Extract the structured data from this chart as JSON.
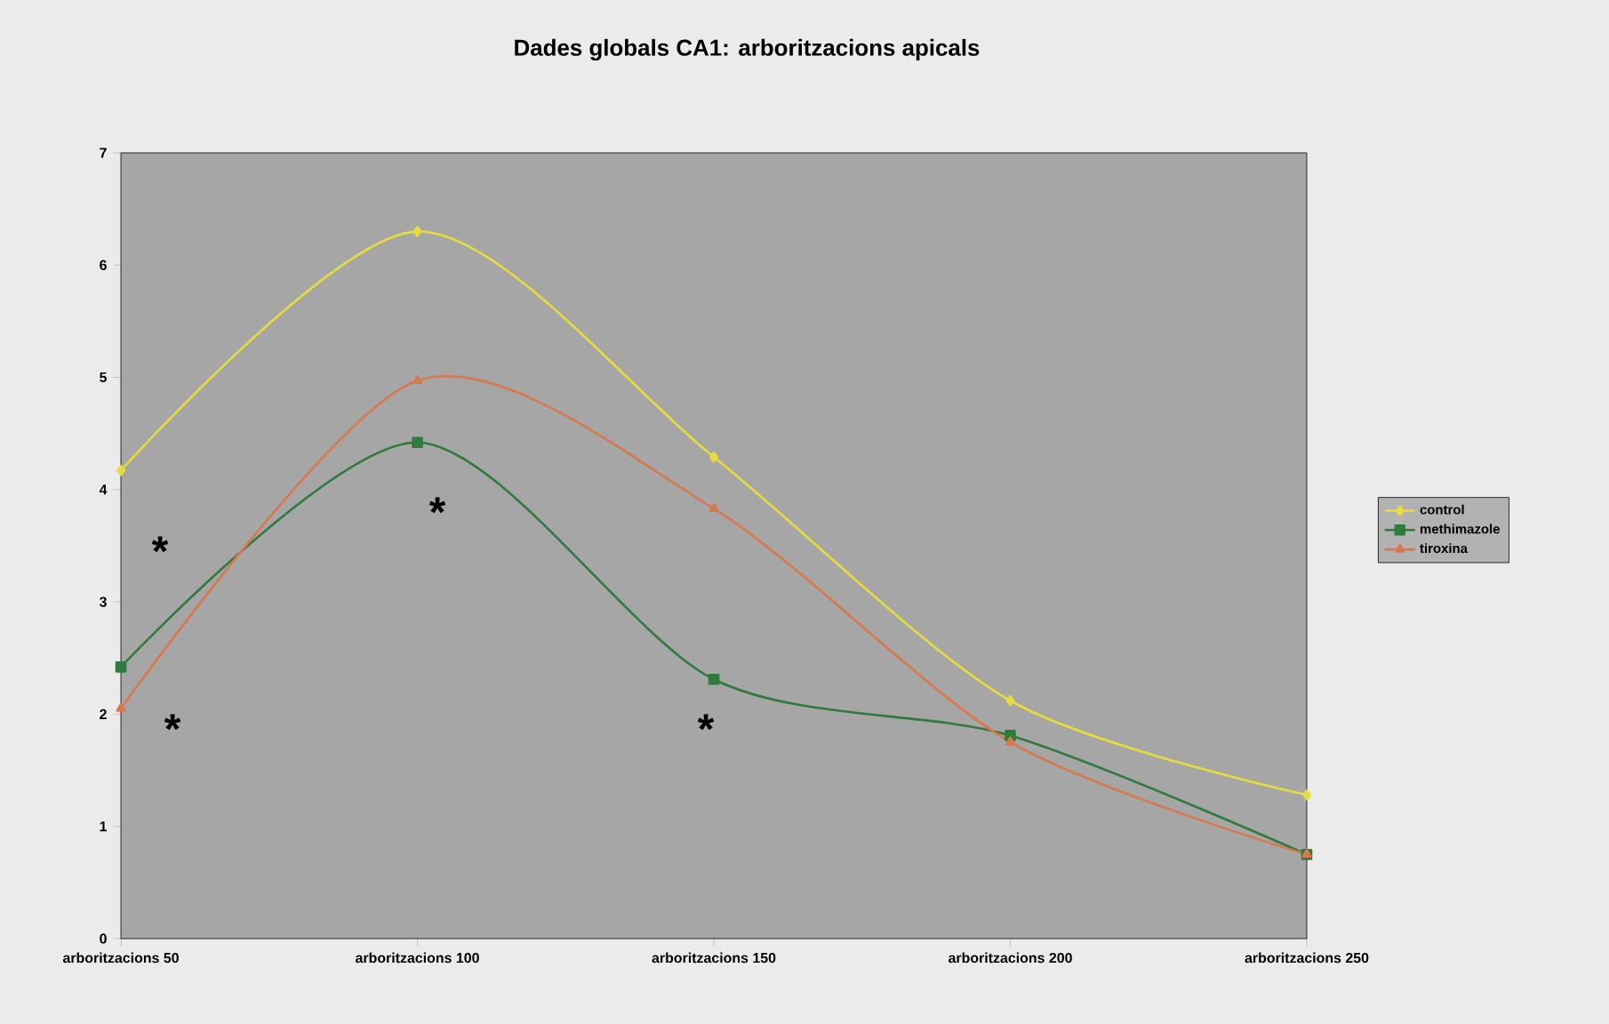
{
  "chart_data": {
    "type": "line",
    "title": "Dades globals CA1: arboritzacions apicals",
    "categories": [
      "arboritzacions 50",
      "arboritzacions 100",
      "arboritzacions 150",
      "arboritzacions 200",
      "arboritzacions 250"
    ],
    "series": [
      {
        "name": "control",
        "color": "#e6dc3c",
        "marker": "diamond",
        "values": [
          4.17,
          6.3,
          4.29,
          2.12,
          1.28
        ]
      },
      {
        "name": "methimazole",
        "color": "#2f7a3c",
        "marker": "square",
        "values": [
          2.42,
          4.42,
          2.31,
          1.81,
          0.75
        ]
      },
      {
        "name": "tiroxina",
        "color": "#d8784c",
        "marker": "triangle",
        "values": [
          2.05,
          4.97,
          3.83,
          1.75,
          0.75
        ]
      }
    ],
    "ylim": [
      0,
      7
    ],
    "yticks": [
      0,
      1,
      2,
      3,
      4,
      5,
      6,
      7
    ],
    "legend": "right",
    "grid": false,
    "line_style": "solid",
    "annotations": [
      "*",
      "*",
      "*",
      "*"
    ]
  }
}
